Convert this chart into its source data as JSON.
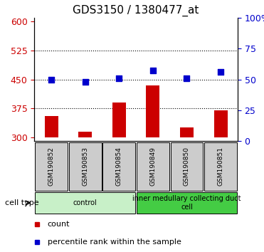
{
  "title": "GDS3150 / 1380477_at",
  "samples": [
    "GSM190852",
    "GSM190853",
    "GSM190854",
    "GSM190849",
    "GSM190850",
    "GSM190851"
  ],
  "counts": [
    355,
    315,
    390,
    435,
    325,
    370
  ],
  "percentile_ranks": [
    50,
    48,
    51,
    57,
    51,
    56
  ],
  "ylim_left": [
    290,
    610
  ],
  "ylim_right": [
    0,
    100
  ],
  "yticks_left": [
    300,
    375,
    450,
    525,
    600
  ],
  "yticks_right": [
    0,
    25,
    50,
    75,
    100
  ],
  "bar_color": "#cc0000",
  "dot_color": "#0000cc",
  "bar_bottom": 300,
  "groups": [
    {
      "label": "control",
      "start": 0,
      "end": 3,
      "color": "#c8f0c8"
    },
    {
      "label": "inner medullary collecting duct\ncell",
      "start": 3,
      "end": 6,
      "color": "#44cc44"
    }
  ],
  "cell_type_label": "cell type",
  "legend_count": "count",
  "legend_percentile": "percentile rank within the sample",
  "tick_color_left": "#cc0000",
  "tick_color_right": "#0000cc",
  "background_color": "#ffffff",
  "sample_box_color": "#cccccc"
}
